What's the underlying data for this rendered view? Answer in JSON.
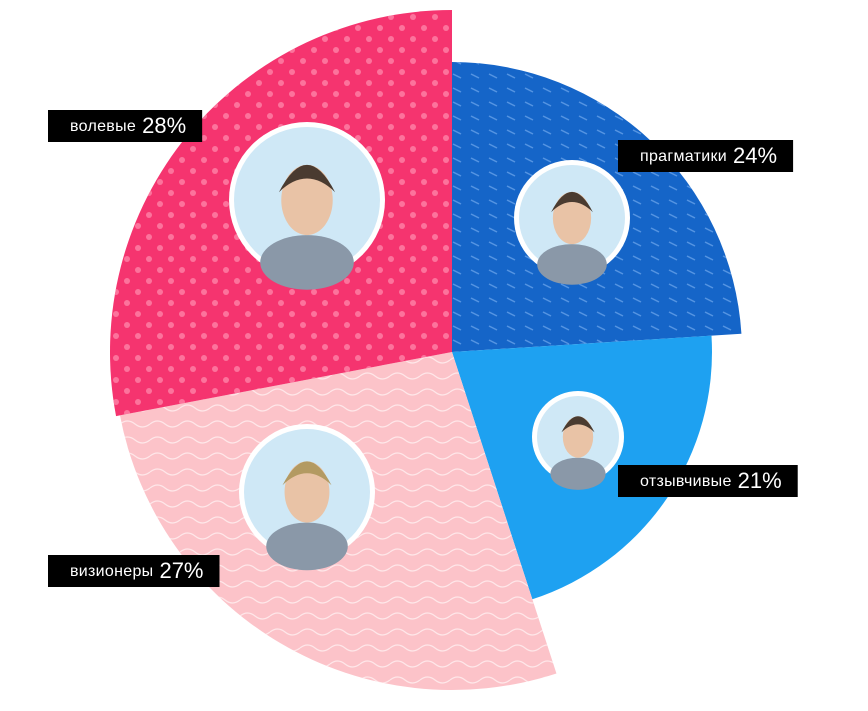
{
  "chart_data": {
    "type": "pie",
    "categories": [
      "прагматики",
      "отзывчивые",
      "визионеры",
      "волевые"
    ],
    "values": [
      24,
      21,
      27,
      28
    ],
    "value_labels": [
      "24%",
      "21%",
      "27%",
      "28%"
    ],
    "colors": [
      "#1565c8",
      "#1ea1f1",
      "#fcc3c9",
      "#f5346f"
    ]
  }
}
